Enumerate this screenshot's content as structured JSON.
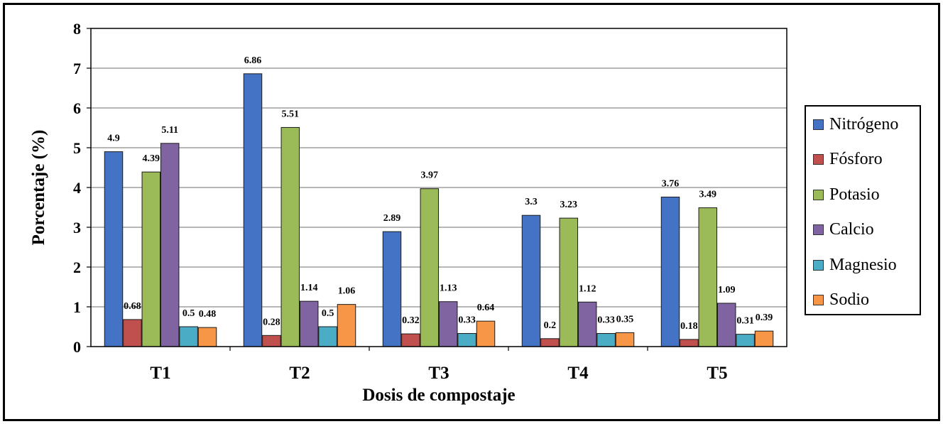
{
  "chart_data": {
    "type": "bar",
    "xlabel": "Dosis de compostaje",
    "ylabel": "Porcentaje (%)",
    "ylim": [
      0,
      8
    ],
    "yticks": [
      "0",
      "1",
      "2",
      "3",
      "4",
      "5",
      "6",
      "7",
      "8"
    ],
    "grid": true,
    "legend_position": "right",
    "categories": [
      "T1",
      "T2",
      "T3",
      "T4",
      "T5"
    ],
    "series": [
      {
        "name": "Nitrógeno",
        "color": "#4472C4",
        "values": [
          4.9,
          6.86,
          2.89,
          3.3,
          3.76
        ],
        "labels": [
          "4.9",
          "6.86",
          "2.89",
          "3.3",
          "3.76"
        ]
      },
      {
        "name": "Fósforo",
        "color": "#C0504D",
        "values": [
          0.68,
          0.28,
          0.32,
          0.2,
          0.18
        ],
        "labels": [
          "0.68",
          "0.28",
          "0.32",
          "0.2",
          "0.18"
        ]
      },
      {
        "name": "Potasio",
        "color": "#9BBB59",
        "values": [
          4.39,
          5.51,
          3.97,
          3.23,
          3.49
        ],
        "labels": [
          "4.39",
          "5.51",
          "3.97",
          "3.23",
          "3.49"
        ]
      },
      {
        "name": "Calcio",
        "color": "#8064A2",
        "values": [
          5.11,
          1.14,
          1.13,
          1.12,
          1.09
        ],
        "labels": [
          "5.11",
          "1.14",
          "1.13",
          "1.12",
          "1.09"
        ]
      },
      {
        "name": "Magnesio",
        "color": "#4BACC6",
        "values": [
          0.5,
          0.5,
          0.33,
          0.33,
          0.31
        ],
        "labels": [
          "0.5",
          "0.5",
          "0.33",
          "0.33",
          "0.31"
        ]
      },
      {
        "name": "Sodio",
        "color": "#F79646",
        "values": [
          0.48,
          1.06,
          0.64,
          0.35,
          0.39
        ],
        "labels": [
          "0.48",
          "1.06",
          "0.64",
          "0.35",
          "0.39"
        ]
      }
    ]
  }
}
